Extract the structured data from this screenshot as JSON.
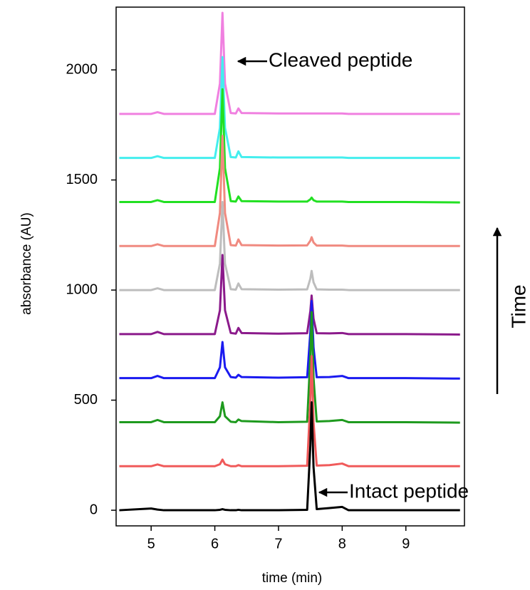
{
  "chart_data": {
    "type": "line",
    "xlabel": "time (min)",
    "ylabel": "absorbance (AU)",
    "annotations": [
      "Cleaved peptide",
      "Intact peptide",
      "Time"
    ],
    "xlim": [
      4.45,
      9.92
    ],
    "xticks": [
      5,
      6,
      7,
      8,
      9
    ],
    "ylim": [
      -71,
      2285
    ],
    "yticks": [
      0,
      500,
      1000,
      1500,
      2000
    ],
    "x": [
      4.5,
      5.0,
      5.1,
      5.2,
      6.0,
      6.08,
      6.12,
      6.16,
      6.25,
      6.33,
      6.37,
      6.42,
      7.0,
      7.45,
      7.5,
      7.52,
      7.55,
      7.6,
      7.8,
      8.0,
      8.1,
      9.0,
      9.85
    ],
    "series": [
      {
        "color": "#000000",
        "values": [
          0,
          8,
          3,
          0,
          0,
          2,
          5,
          2,
          0,
          0,
          2,
          0,
          0,
          2,
          294,
          490,
          196,
          5,
          10,
          15,
          0,
          0,
          0
        ]
      },
      {
        "color": "#f05a5a",
        "values": [
          200,
          200,
          208,
          200,
          200,
          209,
          230,
          209,
          200,
          200,
          205,
          200,
          200,
          202,
          500,
          700,
          400,
          203,
          205,
          212,
          200,
          200,
          200
        ]
      },
      {
        "color": "#1e9a1e",
        "values": [
          400,
          400,
          410,
          400,
          400,
          427,
          490,
          427,
          402,
          400,
          412,
          405,
          400,
          402,
          700,
          900,
          600,
          403,
          405,
          410,
          400,
          400,
          398
        ]
      },
      {
        "color": "#1a1af0",
        "values": [
          600,
          600,
          610,
          600,
          600,
          649,
          764,
          649,
          605,
          602,
          615,
          605,
          602,
          604,
          810,
          950,
          740,
          604,
          605,
          610,
          600,
          600,
          598
        ]
      },
      {
        "color": "#8b1a8b",
        "values": [
          800,
          800,
          810,
          800,
          800,
          908,
          1159,
          908,
          805,
          802,
          828,
          805,
          802,
          804,
          905,
          975,
          870,
          804,
          803,
          805,
          800,
          800,
          798
        ]
      },
      {
        "color": "#bdbdbd",
        "values": [
          1000,
          1000,
          1008,
          1000,
          1000,
          1120,
          1400,
          1120,
          1004,
          1002,
          1030,
          1004,
          1002,
          1003,
          1052,
          1087,
          1035,
          1003,
          1002,
          1002,
          1000,
          1000,
          1000
        ]
      },
      {
        "color": "#f08a80",
        "values": [
          1200,
          1200,
          1208,
          1200,
          1200,
          1350,
          1700,
          1350,
          1204,
          1202,
          1230,
          1204,
          1202,
          1203,
          1224,
          1240,
          1216,
          1202,
          1202,
          1202,
          1200,
          1200,
          1200
        ]
      },
      {
        "color": "#22e022",
        "values": [
          1400,
          1400,
          1408,
          1400,
          1400,
          1554,
          1912,
          1554,
          1404,
          1402,
          1425,
          1404,
          1402,
          1402,
          1412,
          1420,
          1408,
          1402,
          1402,
          1402,
          1400,
          1400,
          1398
        ]
      },
      {
        "color": "#44eeee",
        "values": [
          1600,
          1600,
          1608,
          1600,
          1600,
          1737,
          2058,
          1737,
          1604,
          1602,
          1630,
          1604,
          1602,
          1602,
          1602,
          1602,
          1602,
          1602,
          1602,
          1602,
          1600,
          1600,
          1600
        ]
      },
      {
        "color": "#f080e0",
        "values": [
          1800,
          1800,
          1808,
          1800,
          1800,
          1938,
          2259,
          1938,
          1804,
          1802,
          1825,
          1804,
          1802,
          1802,
          1802,
          1802,
          1802,
          1802,
          1802,
          1802,
          1800,
          1800,
          1800
        ]
      }
    ]
  }
}
